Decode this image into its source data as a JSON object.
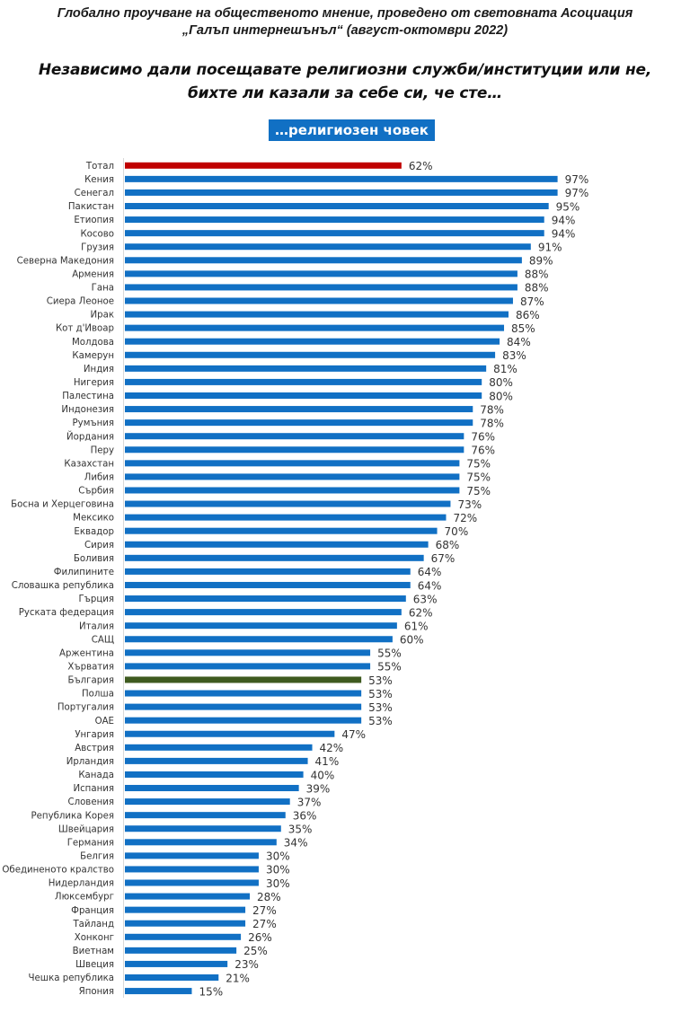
{
  "header": {
    "source_line1": "Глобално проучване на общественото мнение, проведено от световната Асоциация",
    "source_line2": "„Галъп интернешънъл“ (август-октомври 2022)",
    "question_line1": "Независимо дали посещавате религиозни служби/институции или не,",
    "question_line2": "бихте ли казали за себе си, че сте…",
    "answer_badge": "…религиозен човек"
  },
  "colors": {
    "default_bar": "#1170c4",
    "total_bar": "#c00000",
    "bulgaria_bar": "#3e5a1f",
    "badge_bg": "#1170c4",
    "axis": "#d9d9d9"
  },
  "chart_data": {
    "type": "bar",
    "orientation": "horizontal",
    "title": "…религиозен човек",
    "xlabel": "",
    "ylabel": "",
    "xlim": [
      0,
      100
    ],
    "value_suffix": "%",
    "grid": false,
    "legend": "none",
    "highlights": {
      "Тотал": "total_bar",
      "България": "bulgaria_bar"
    },
    "categories": [
      "Тотал",
      "Кения",
      "Сенегал",
      "Пакистан",
      "Етиопия",
      "Косово",
      "Грузия",
      "Северна Македония",
      "Армения",
      "Гана",
      "Сиера Леоное",
      "Ирак",
      "Кот д'Ивоар",
      "Молдова",
      "Камерун",
      "Индия",
      "Нигерия",
      "Палестина",
      "Индонезия",
      "Румъния",
      "Йордания",
      "Перу",
      "Казахстан",
      "Либия",
      "Сърбия",
      "Босна и Херцеговина",
      "Мексико",
      "Еквадор",
      "Сирия",
      "Боливия",
      "Филипините",
      "Словашка република",
      "Гърция",
      "Руската федерация",
      "Италия",
      "САЩ",
      "Аржентина",
      "Хърватия",
      "България",
      "Полша",
      "Португалия",
      "ОАЕ",
      "Унгария",
      "Австрия",
      "Ирландия",
      "Канада",
      "Испания",
      "Словения",
      "Република Корея",
      "Швейцария",
      "Германия",
      "Белгия",
      "Обединеното кралство",
      "Нидерландия",
      "Люксембург",
      "Франция",
      "Тайланд",
      "Хонконг",
      "Виетнам",
      "Швеция",
      "Чешка република",
      "Япония"
    ],
    "values": [
      62,
      97,
      97,
      95,
      94,
      94,
      91,
      89,
      88,
      88,
      87,
      86,
      85,
      84,
      83,
      81,
      80,
      80,
      78,
      78,
      76,
      76,
      75,
      75,
      75,
      73,
      72,
      70,
      68,
      67,
      64,
      64,
      63,
      62,
      61,
      60,
      55,
      55,
      53,
      53,
      53,
      53,
      47,
      42,
      41,
      40,
      39,
      37,
      36,
      35,
      34,
      30,
      30,
      30,
      28,
      27,
      27,
      26,
      25,
      23,
      21,
      15
    ]
  }
}
